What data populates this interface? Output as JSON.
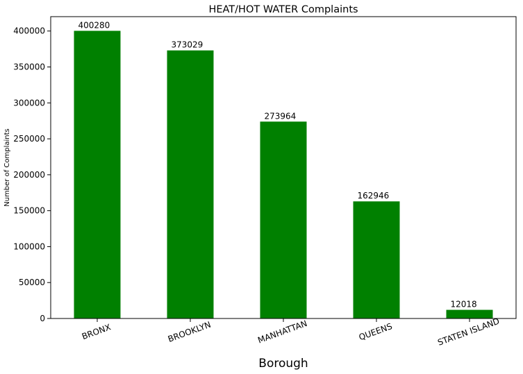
{
  "chart_data": {
    "type": "bar",
    "title": "HEAT/HOT WATER Complaints",
    "xlabel": "Borough",
    "ylabel": "Number of Complaints",
    "categories": [
      "BRONX",
      "BROOKLYN",
      "MANHATTAN",
      "QUEENS",
      "STATEN ISLAND"
    ],
    "values": [
      400280,
      373029,
      273964,
      162946,
      12018
    ],
    "data_labels": [
      "400280",
      "373029",
      "273964",
      "162946",
      "12018"
    ],
    "ylim": [
      0,
      420000
    ],
    "yticks": [
      0,
      50000,
      100000,
      150000,
      200000,
      250000,
      300000,
      350000,
      400000
    ],
    "ytick_labels": [
      "0",
      "50000",
      "100000",
      "150000",
      "200000",
      "250000",
      "300000",
      "350000",
      "400000"
    ],
    "bar_color": "#008000",
    "grid": false,
    "legend": "none",
    "xtick_rotation_deg": -20
  }
}
